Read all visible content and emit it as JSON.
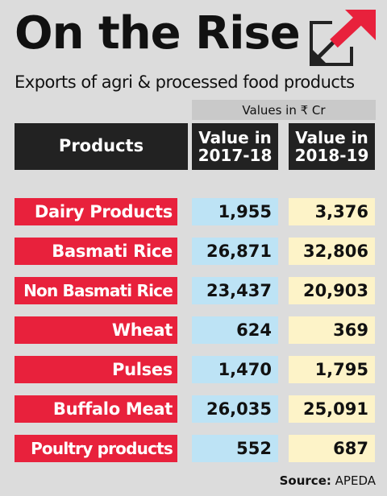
{
  "header": {
    "title": "On the Rise",
    "subtitle": "Exports of agri & processed food products",
    "units_note": "Values in ₹ Cr",
    "icon": "arrow-up-right-icon",
    "icon_color": "#e8213c"
  },
  "columns": {
    "products": "Products",
    "y1_line1": "Value in",
    "y1_line2": "2017-18",
    "y2_line1": "Value in",
    "y2_line2": "2018-19"
  },
  "colors": {
    "product_bg": "#e8213c",
    "y1_bg": "#bde3f5",
    "y2_bg": "#fdf3c8",
    "header_bg": "#222222"
  },
  "chart_data": {
    "type": "table",
    "title": "On the Rise",
    "subtitle": "Exports of agri & processed food products",
    "unit": "Values in ₹ Cr",
    "headers": [
      "Products",
      "Value in 2017-18",
      "Value in 2018-19"
    ],
    "rows": [
      {
        "product": "Dairy Products",
        "y2017_18": "1,955",
        "y2018_19": "3,376"
      },
      {
        "product": "Basmati Rice",
        "y2017_18": "26,871",
        "y2018_19": "32,806"
      },
      {
        "product": "Non Basmati Rice",
        "y2017_18": "23,437",
        "y2018_19": "20,903"
      },
      {
        "product": "Wheat",
        "y2017_18": "624",
        "y2018_19": "369"
      },
      {
        "product": "Pulses",
        "y2017_18": "1,470",
        "y2018_19": "1,795"
      },
      {
        "product": "Buffalo Meat",
        "y2017_18": "26,035",
        "y2018_19": "25,091"
      },
      {
        "product": "Poultry products",
        "y2017_18": "552",
        "y2018_19": "687"
      }
    ]
  },
  "footer": {
    "source_label": "Source:",
    "source_value": "APEDA"
  }
}
